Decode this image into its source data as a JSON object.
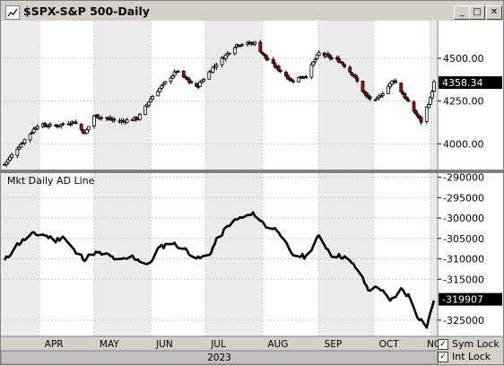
{
  "window": {
    "title": "$SPX-S&P 500-Daily",
    "buttons": {
      "minimize": "_",
      "maximize": "□",
      "close": "✕"
    }
  },
  "status": {
    "year": "2023",
    "sym_lock_label": "Sym Lock",
    "int_lock_label": "Int Lock",
    "sym_lock_checked": true,
    "int_lock_checked": true
  },
  "colors": {
    "panel_bg": "#ffffff",
    "shade_band": "#ebebeb",
    "grid": "#c8c8c8",
    "up_candle": "#ffffff",
    "down_candle": "#c00000",
    "line": "#000000",
    "value_box": "#000000"
  },
  "chart_data": [
    {
      "type": "candlestick",
      "label": "",
      "xtick_labels": [
        "APR",
        "MAY",
        "JUN",
        "JUL",
        "AUG",
        "SEP",
        "OCT",
        "NOV"
      ],
      "ytick_labels": [
        "4000.00",
        "4250.00",
        "4500.00"
      ],
      "y_ticks": [
        4000,
        4250,
        4500
      ],
      "ylim": [
        3850,
        4720
      ],
      "last_value": "4358.34",
      "grid": true,
      "close_path": [
        {
          "d": "2023-03-13",
          "v": 3880
        },
        {
          "d": "2023-03-20",
          "v": 3975
        },
        {
          "d": "2023-03-31",
          "v": 4110
        },
        {
          "d": "2023-04-10",
          "v": 4105
        },
        {
          "d": "2023-04-20",
          "v": 4130
        },
        {
          "d": "2023-04-26",
          "v": 4060
        },
        {
          "d": "2023-05-01",
          "v": 4165
        },
        {
          "d": "2023-05-15",
          "v": 4130
        },
        {
          "d": "2023-05-25",
          "v": 4150
        },
        {
          "d": "2023-06-02",
          "v": 4280
        },
        {
          "d": "2023-06-15",
          "v": 4425
        },
        {
          "d": "2023-06-26",
          "v": 4330
        },
        {
          "d": "2023-07-05",
          "v": 4445
        },
        {
          "d": "2023-07-18",
          "v": 4580
        },
        {
          "d": "2023-07-28",
          "v": 4590
        },
        {
          "d": "2023-08-03",
          "v": 4500
        },
        {
          "d": "2023-08-17",
          "v": 4370
        },
        {
          "d": "2023-08-25",
          "v": 4400
        },
        {
          "d": "2023-09-01",
          "v": 4530
        },
        {
          "d": "2023-09-13",
          "v": 4480
        },
        {
          "d": "2023-09-20",
          "v": 4400
        },
        {
          "d": "2023-09-27",
          "v": 4275
        },
        {
          "d": "2023-10-02",
          "v": 4250
        },
        {
          "d": "2023-10-12",
          "v": 4375
        },
        {
          "d": "2023-10-20",
          "v": 4240
        },
        {
          "d": "2023-10-27",
          "v": 4130
        },
        {
          "d": "2023-11-01",
          "v": 4265
        },
        {
          "d": "2023-11-03",
          "v": 4358
        }
      ]
    },
    {
      "type": "line",
      "label": "Mkt Daily AD Line",
      "xtick_labels": [
        "APR",
        "MAY",
        "JUN",
        "JUL",
        "AUG",
        "SEP",
        "OCT",
        "NOV"
      ],
      "ytick_labels": [
        "-290000",
        "-295000",
        "-300000",
        "-305000",
        "-310000",
        "-315000",
        "-325000"
      ],
      "y_ticks": [
        -290000,
        -295000,
        -300000,
        -305000,
        -310000,
        -315000,
        -325000
      ],
      "ylim": [
        -329000,
        -289000
      ],
      "last_value": "-319907",
      "grid": true,
      "series": [
        {
          "values": [
            {
              "d": "2023-03-13",
              "v": -310500
            },
            {
              "d": "2023-03-20",
              "v": -306500
            },
            {
              "d": "2023-03-28",
              "v": -304000
            },
            {
              "d": "2023-04-03",
              "v": -304000
            },
            {
              "d": "2023-04-10",
              "v": -305500
            },
            {
              "d": "2023-04-14",
              "v": -304500
            },
            {
              "d": "2023-04-21",
              "v": -308500
            },
            {
              "d": "2023-04-26",
              "v": -310000
            },
            {
              "d": "2023-05-01",
              "v": -308500
            },
            {
              "d": "2023-05-08",
              "v": -309000
            },
            {
              "d": "2023-05-15",
              "v": -310500
            },
            {
              "d": "2023-05-22",
              "v": -309500
            },
            {
              "d": "2023-05-31",
              "v": -311500
            },
            {
              "d": "2023-06-05",
              "v": -307500
            },
            {
              "d": "2023-06-12",
              "v": -306000
            },
            {
              "d": "2023-06-19",
              "v": -307500
            },
            {
              "d": "2023-06-27",
              "v": -310000
            },
            {
              "d": "2023-07-03",
              "v": -309000
            },
            {
              "d": "2023-07-07",
              "v": -305500
            },
            {
              "d": "2023-07-14",
              "v": -301500
            },
            {
              "d": "2023-07-20",
              "v": -300000
            },
            {
              "d": "2023-07-28",
              "v": -299000
            },
            {
              "d": "2023-08-03",
              "v": -302000
            },
            {
              "d": "2023-08-10",
              "v": -303000
            },
            {
              "d": "2023-08-17",
              "v": -309000
            },
            {
              "d": "2023-08-25",
              "v": -309500
            },
            {
              "d": "2023-09-01",
              "v": -304500
            },
            {
              "d": "2023-09-08",
              "v": -309000
            },
            {
              "d": "2023-09-15",
              "v": -309500
            },
            {
              "d": "2023-09-22",
              "v": -312500
            },
            {
              "d": "2023-09-28",
              "v": -317500
            },
            {
              "d": "2023-10-04",
              "v": -317000
            },
            {
              "d": "2023-10-10",
              "v": -320500
            },
            {
              "d": "2023-10-16",
              "v": -317500
            },
            {
              "d": "2023-10-20",
              "v": -319000
            },
            {
              "d": "2023-10-25",
              "v": -324000
            },
            {
              "d": "2023-10-30",
              "v": -326500
            },
            {
              "d": "2023-11-01",
              "v": -323500
            },
            {
              "d": "2023-11-03",
              "v": -319907
            }
          ]
        }
      ]
    }
  ]
}
